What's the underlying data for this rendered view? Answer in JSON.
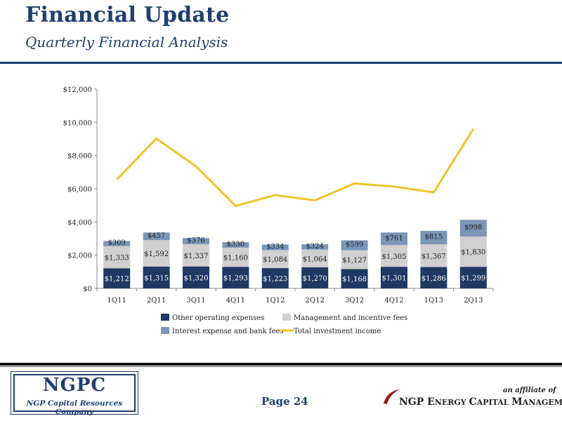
{
  "header": {
    "title": "Financial Update",
    "subtitle": "Quarterly Financial Analysis"
  },
  "footer": {
    "logo_main": "NGPC",
    "logo_sub": "NGP Capital Resources Company",
    "page_label": "Page 24",
    "affiliate_label": "an affiliate of",
    "affiliate_name_prefix": "NGP E",
    "affiliate_name_rest": "NERGY ",
    "affiliate_name_c": "C",
    "affiliate_name_apital": "APITAL ",
    "affiliate_name_m": "M",
    "affiliate_name_anagement": "ANAGEMENT"
  },
  "colors": {
    "navy": "#1f3e6e",
    "other_operating": "#1f3864",
    "management_fees": "#d0d0d0",
    "interest_expense": "#7b96b8",
    "total_income_line": "#f2c22a"
  },
  "chart_data": {
    "type": "bar",
    "stacked": true,
    "categories": [
      "1Q11",
      "2Q11",
      "3Q11",
      "4Q11",
      "1Q12",
      "2Q12",
      "3Q12",
      "4Q12",
      "1Q13",
      "2Q13"
    ],
    "series": [
      {
        "name": "Other operating expenses",
        "values": [
          1212,
          1315,
          1320,
          1293,
          1223,
          1270,
          1168,
          1301,
          1286,
          1299
        ],
        "labels": [
          "$1,212",
          "$1,315",
          "$1,320",
          "$1,293",
          "$1,223",
          "$1,270",
          "$1,168",
          "$1,301",
          "$1,286",
          "$1,299"
        ]
      },
      {
        "name": "Management and incentive fees",
        "values": [
          1333,
          1592,
          1337,
          1160,
          1084,
          1064,
          1127,
          1305,
          1367,
          1830
        ],
        "labels": [
          "$1,333",
          "$1,592",
          "$1,337",
          "$1,160",
          "$1,084",
          "$1,064",
          "$1,127",
          "$1,305",
          "$1,367",
          "$1,830"
        ]
      },
      {
        "name": "Interest expense and bank fees",
        "values": [
          309,
          457,
          376,
          330,
          334,
          324,
          599,
          761,
          815,
          998
        ],
        "labels": [
          "$309",
          "$457",
          "$376",
          "$330",
          "$334",
          "$324",
          "$599",
          "$761",
          "$815",
          "$998"
        ]
      }
    ],
    "line_series": {
      "name": "Total investment income",
      "values": [
        6550,
        9020,
        7350,
        4960,
        5620,
        5300,
        6320,
        6130,
        5780,
        9600
      ]
    },
    "ylim": [
      0,
      12000
    ],
    "yticks": [
      "$0",
      "$2,000",
      "$4,000",
      "$6,000",
      "$8,000",
      "$10,000",
      "$12,000"
    ],
    "ytick_values": [
      0,
      2000,
      4000,
      6000,
      8000,
      10000,
      12000
    ],
    "grid": false,
    "legend_placement": "bottom"
  }
}
